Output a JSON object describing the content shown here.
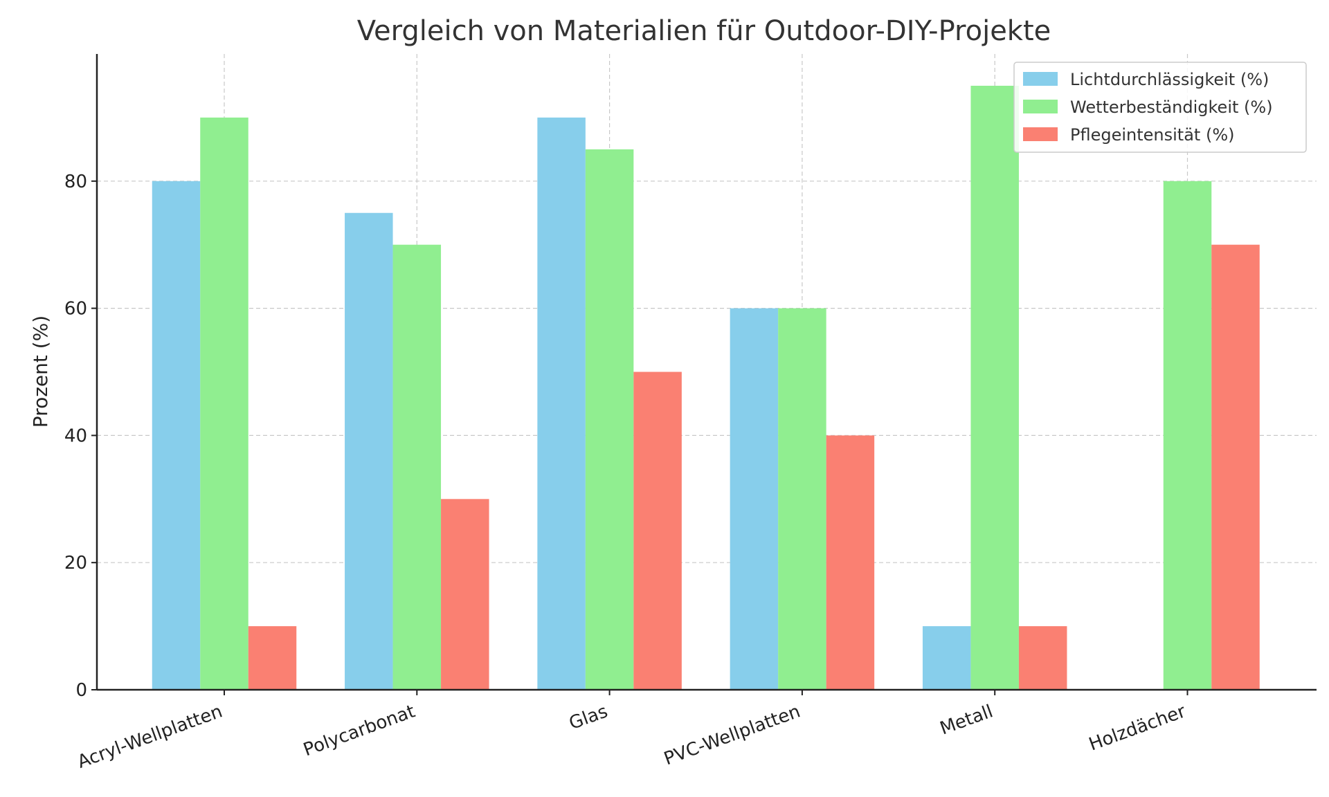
{
  "chart_data": {
    "type": "bar",
    "title": "Vergleich von Materialien für Outdoor-DIY-Projekte",
    "xlabel": "",
    "ylabel": "Prozent (%)",
    "ylim": [
      0,
      100
    ],
    "yticks": [
      0,
      20,
      40,
      60,
      80
    ],
    "grid": true,
    "legend_position": "top-right",
    "categories": [
      "Acryl-Wellplatten",
      "Polycarbonat",
      "Glas",
      "PVC-Wellplatten",
      "Metall",
      "Holzdächer"
    ],
    "series": [
      {
        "name": "Lichtdurchlässigkeit (%)",
        "color": "#87ceeb",
        "values": [
          80,
          75,
          90,
          60,
          10,
          0
        ]
      },
      {
        "name": "Wetterbeständigkeit (%)",
        "color": "#90ee90",
        "values": [
          90,
          70,
          85,
          60,
          95,
          80
        ]
      },
      {
        "name": "Pflegeintensität (%)",
        "color": "#fa8072",
        "values": [
          10,
          30,
          50,
          40,
          10,
          70
        ]
      }
    ]
  }
}
